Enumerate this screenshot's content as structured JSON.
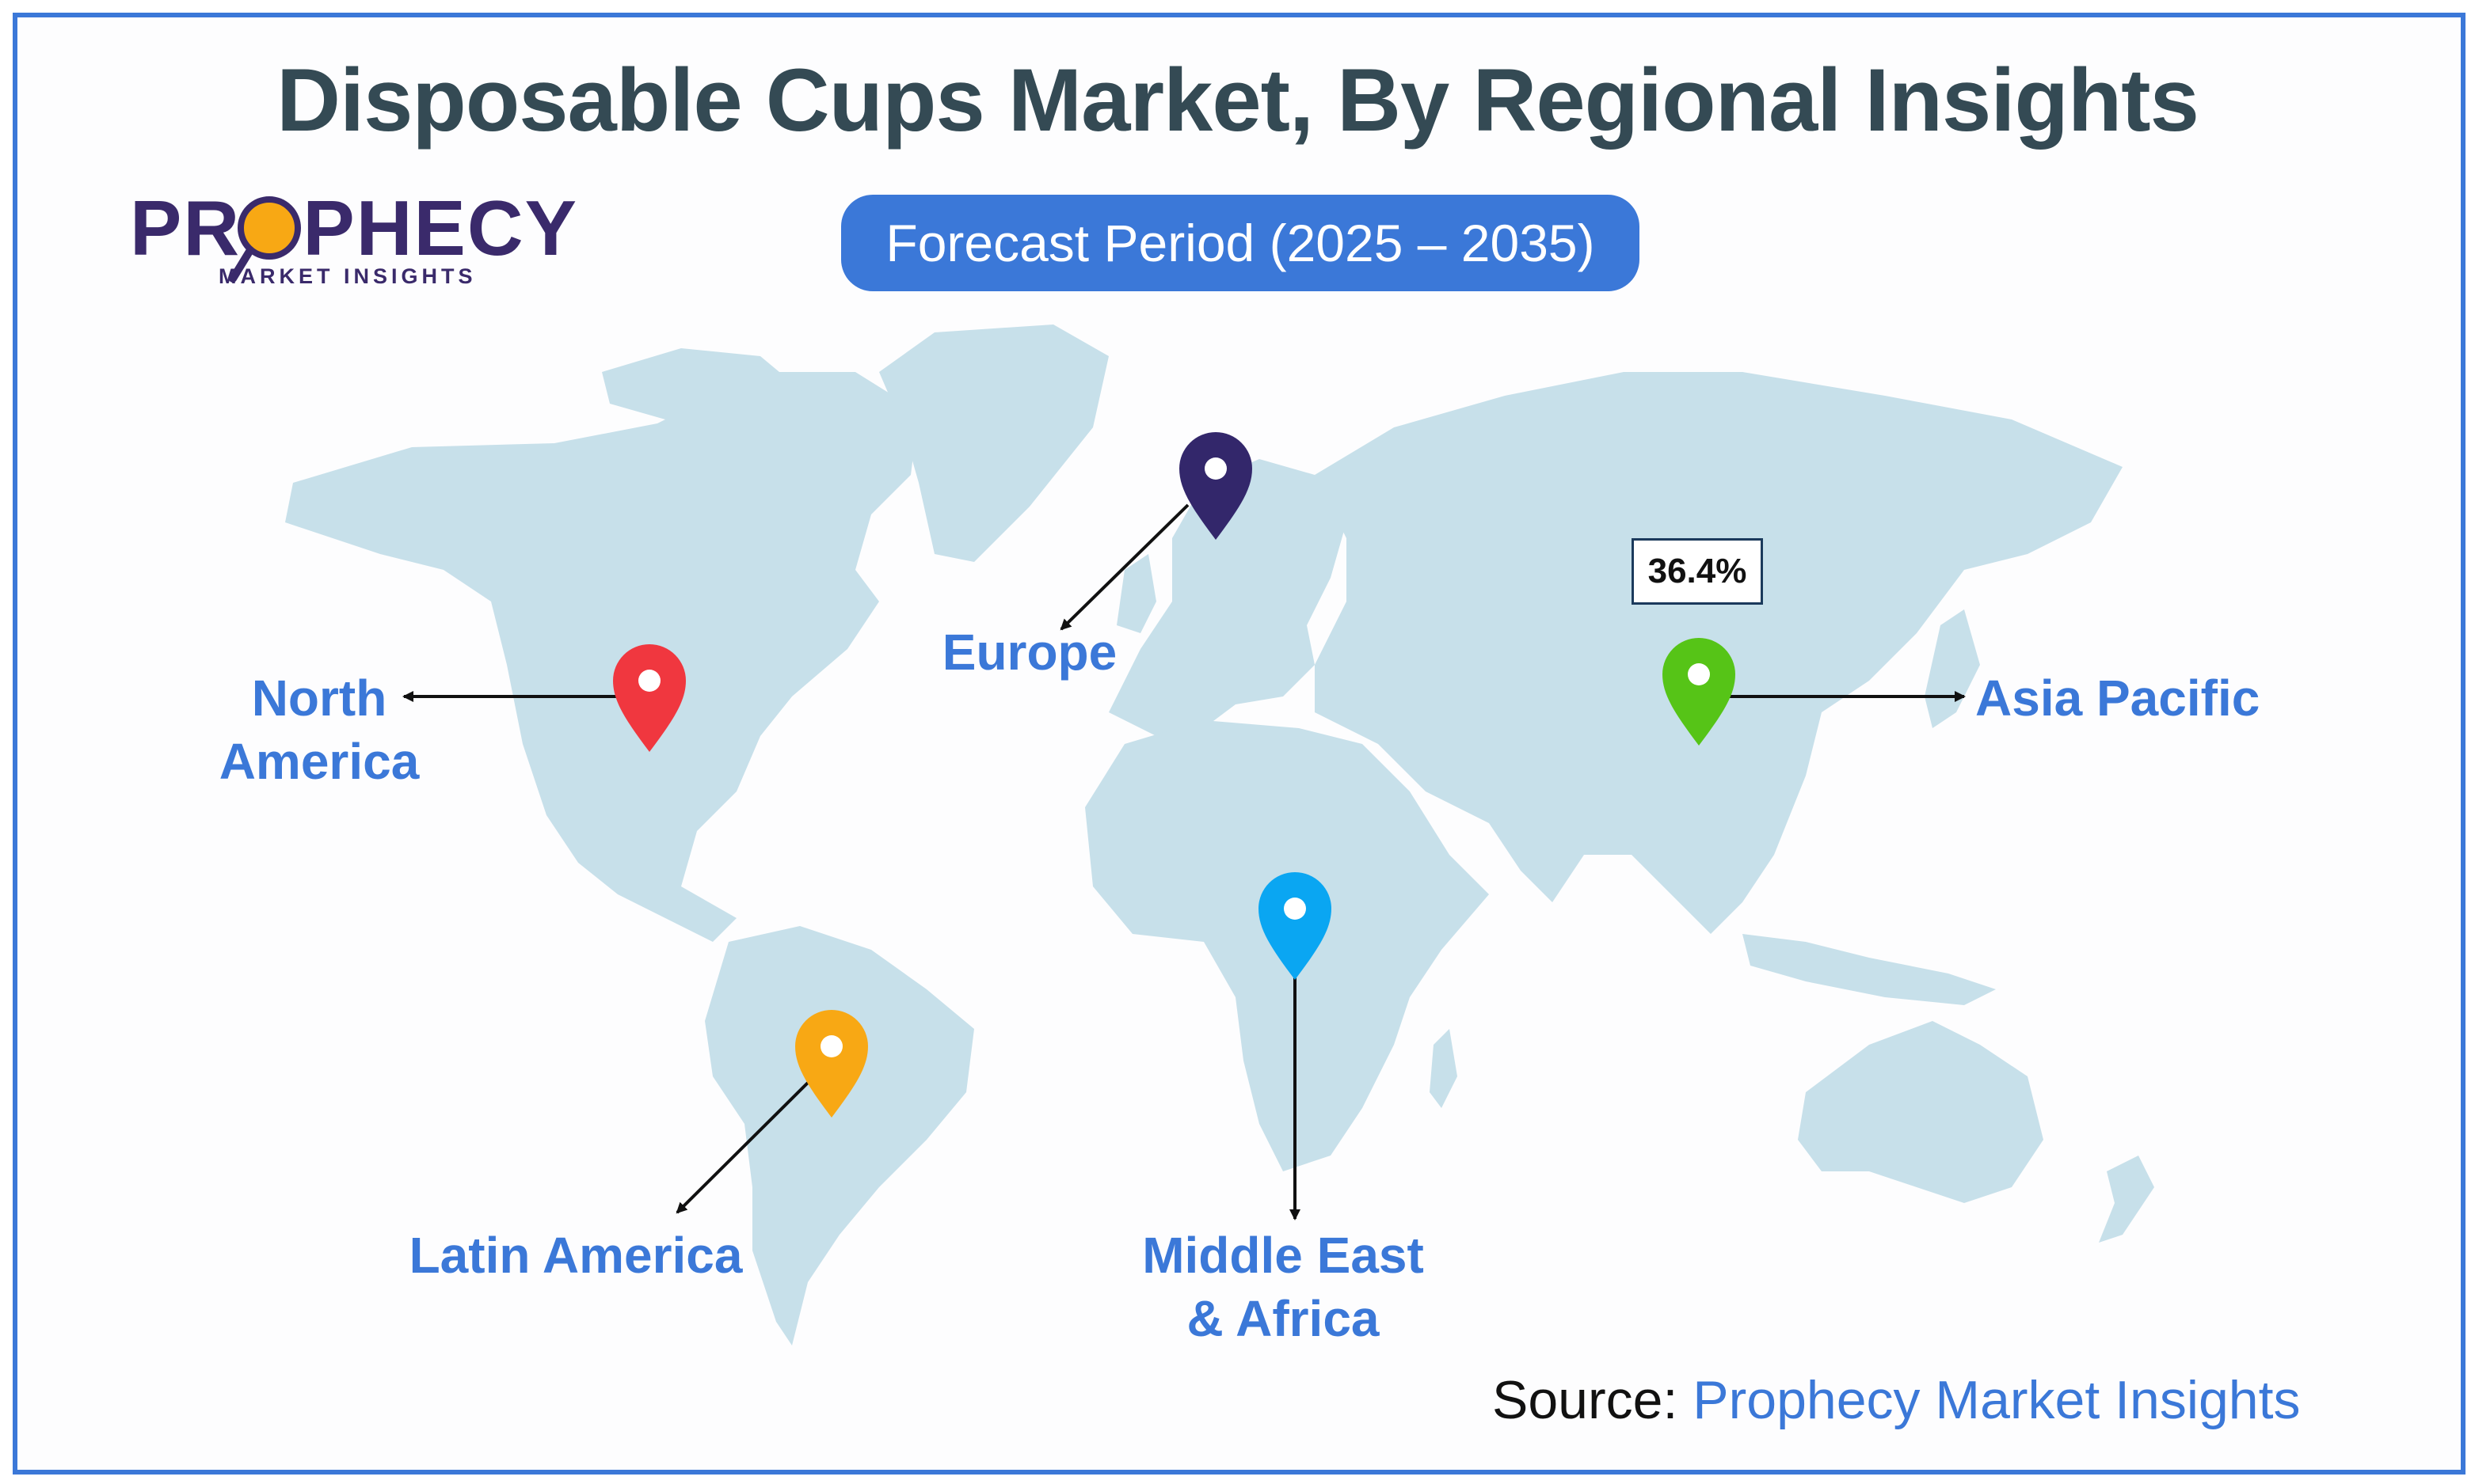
{
  "title": "Disposable Cups Market, By Regional Insights",
  "logo": {
    "name": "PROPHECY",
    "tagline": "MARKET INSIGHTS"
  },
  "forecast_period": "Forecast Period (2025 – 2035)",
  "regions": {
    "north_america": {
      "line1": "North",
      "line2": "America",
      "pin_color": "#f0373f"
    },
    "europe": {
      "label": "Europe",
      "pin_color": "#33276b"
    },
    "asia_pacific": {
      "label": "Asia Pacific",
      "pin_color": "#56c417",
      "share": "36.4%"
    },
    "latin_america": {
      "label": "Latin America",
      "pin_color": "#f8a814"
    },
    "middle_east_africa": {
      "line1": "Middle East",
      "line2": "& Africa",
      "pin_color": "#0aa6f2"
    }
  },
  "source": {
    "label": "Source:",
    "name": "Prophecy Market Insights"
  },
  "colors": {
    "accent": "#3b78d8",
    "map_land": "#c7e0ea",
    "title": "#344a54"
  }
}
